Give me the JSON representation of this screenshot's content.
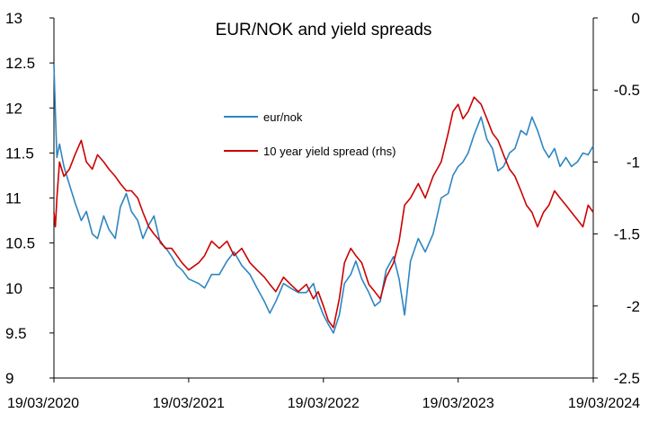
{
  "chart_data": {
    "type": "line",
    "title": "EUR/NOK and yield spreads",
    "x_tick_labels": [
      "19/03/2020",
      "19/03/2021",
      "19/03/2022",
      "19/03/2023",
      "19/03/2024"
    ],
    "x_range": [
      "2020-03-19",
      "2024-03-19"
    ],
    "y_left": {
      "min": 9,
      "max": 13,
      "step": 0.5,
      "tick_labels": [
        "13",
        "12.5",
        "12",
        "11.5",
        "11",
        "10.5",
        "10",
        "9.5",
        "9"
      ]
    },
    "y_right": {
      "min": -2.5,
      "max": 0,
      "step": 0.5,
      "tick_labels": [
        "0",
        "-0.5",
        "-1",
        "-1.5",
        "-2",
        "-2.5"
      ]
    },
    "grid": false,
    "legend_position": "upper-middle",
    "series": [
      {
        "name": "eur/nok",
        "axis": "left",
        "color": "#2E86C1",
        "points": [
          [
            "2020-03-19",
            12.48
          ],
          [
            "2020-03-23",
            11.95
          ],
          [
            "2020-03-27",
            11.45
          ],
          [
            "2020-04-03",
            11.6
          ],
          [
            "2020-04-15",
            11.35
          ],
          [
            "2020-04-30",
            11.15
          ],
          [
            "2020-05-15",
            10.95
          ],
          [
            "2020-06-01",
            10.75
          ],
          [
            "2020-06-15",
            10.85
          ],
          [
            "2020-07-01",
            10.6
          ],
          [
            "2020-07-15",
            10.55
          ],
          [
            "2020-08-01",
            10.8
          ],
          [
            "2020-08-15",
            10.65
          ],
          [
            "2020-09-01",
            10.55
          ],
          [
            "2020-09-15",
            10.9
          ],
          [
            "2020-10-01",
            11.05
          ],
          [
            "2020-10-15",
            10.85
          ],
          [
            "2020-11-01",
            10.75
          ],
          [
            "2020-11-15",
            10.55
          ],
          [
            "2020-12-01",
            10.7
          ],
          [
            "2020-12-15",
            10.8
          ],
          [
            "2021-01-01",
            10.5
          ],
          [
            "2021-01-15",
            10.45
          ],
          [
            "2021-02-01",
            10.35
          ],
          [
            "2021-02-15",
            10.25
          ],
          [
            "2021-03-01",
            10.2
          ],
          [
            "2021-03-19",
            10.1
          ],
          [
            "2021-04-15",
            10.05
          ],
          [
            "2021-05-01",
            10.0
          ],
          [
            "2021-05-20",
            10.15
          ],
          [
            "2021-06-10",
            10.15
          ],
          [
            "2021-07-01",
            10.3
          ],
          [
            "2021-07-20",
            10.4
          ],
          [
            "2021-08-10",
            10.25
          ],
          [
            "2021-09-01",
            10.15
          ],
          [
            "2021-09-20",
            10.0
          ],
          [
            "2021-10-10",
            9.85
          ],
          [
            "2021-10-25",
            9.72
          ],
          [
            "2021-11-10",
            9.85
          ],
          [
            "2021-12-01",
            10.05
          ],
          [
            "2021-12-20",
            10.0
          ],
          [
            "2022-01-10",
            9.95
          ],
          [
            "2022-02-01",
            9.95
          ],
          [
            "2022-02-20",
            10.05
          ],
          [
            "2022-03-05",
            9.85
          ],
          [
            "2022-03-19",
            9.7
          ],
          [
            "2022-04-01",
            9.6
          ],
          [
            "2022-04-15",
            9.5
          ],
          [
            "2022-05-01",
            9.7
          ],
          [
            "2022-05-15",
            10.05
          ],
          [
            "2022-06-01",
            10.15
          ],
          [
            "2022-06-15",
            10.3
          ],
          [
            "2022-07-01",
            10.1
          ],
          [
            "2022-07-20",
            9.95
          ],
          [
            "2022-08-05",
            9.8
          ],
          [
            "2022-08-20",
            9.85
          ],
          [
            "2022-09-05",
            10.2
          ],
          [
            "2022-09-25",
            10.35
          ],
          [
            "2022-10-10",
            10.1
          ],
          [
            "2022-10-25",
            9.7
          ],
          [
            "2022-11-10",
            10.3
          ],
          [
            "2022-12-01",
            10.55
          ],
          [
            "2022-12-20",
            10.4
          ],
          [
            "2023-01-10",
            10.6
          ],
          [
            "2023-02-01",
            11.0
          ],
          [
            "2023-02-20",
            11.05
          ],
          [
            "2023-03-05",
            11.25
          ],
          [
            "2023-03-19",
            11.35
          ],
          [
            "2023-04-01",
            11.4
          ],
          [
            "2023-04-15",
            11.5
          ],
          [
            "2023-05-01",
            11.7
          ],
          [
            "2023-05-20",
            11.9
          ],
          [
            "2023-06-05",
            11.65
          ],
          [
            "2023-06-20",
            11.55
          ],
          [
            "2023-07-05",
            11.3
          ],
          [
            "2023-07-20",
            11.35
          ],
          [
            "2023-08-05",
            11.5
          ],
          [
            "2023-08-20",
            11.55
          ],
          [
            "2023-09-05",
            11.75
          ],
          [
            "2023-09-20",
            11.7
          ],
          [
            "2023-10-05",
            11.9
          ],
          [
            "2023-10-20",
            11.75
          ],
          [
            "2023-11-05",
            11.55
          ],
          [
            "2023-11-20",
            11.45
          ],
          [
            "2023-12-05",
            11.55
          ],
          [
            "2023-12-20",
            11.35
          ],
          [
            "2024-01-05",
            11.45
          ],
          [
            "2024-01-20",
            11.35
          ],
          [
            "2024-02-05",
            11.4
          ],
          [
            "2024-02-20",
            11.5
          ],
          [
            "2024-03-05",
            11.48
          ],
          [
            "2024-03-19",
            11.58
          ]
        ]
      },
      {
        "name": "10 year yield spread (rhs)",
        "axis": "right",
        "color": "#CC0000",
        "points": [
          [
            "2020-03-19",
            -1.35
          ],
          [
            "2020-03-23",
            -1.45
          ],
          [
            "2020-03-27",
            -1.25
          ],
          [
            "2020-04-03",
            -1.0
          ],
          [
            "2020-04-15",
            -1.1
          ],
          [
            "2020-04-30",
            -1.05
          ],
          [
            "2020-05-15",
            -0.95
          ],
          [
            "2020-06-01",
            -0.85
          ],
          [
            "2020-06-15",
            -1.0
          ],
          [
            "2020-07-01",
            -1.05
          ],
          [
            "2020-07-15",
            -0.95
          ],
          [
            "2020-08-01",
            -1.0
          ],
          [
            "2020-08-15",
            -1.05
          ],
          [
            "2020-09-01",
            -1.1
          ],
          [
            "2020-09-15",
            -1.15
          ],
          [
            "2020-10-01",
            -1.2
          ],
          [
            "2020-10-15",
            -1.2
          ],
          [
            "2020-11-01",
            -1.25
          ],
          [
            "2020-11-15",
            -1.35
          ],
          [
            "2020-12-01",
            -1.45
          ],
          [
            "2020-12-15",
            -1.5
          ],
          [
            "2021-01-01",
            -1.55
          ],
          [
            "2021-01-15",
            -1.6
          ],
          [
            "2021-02-01",
            -1.6
          ],
          [
            "2021-02-15",
            -1.65
          ],
          [
            "2021-03-01",
            -1.7
          ],
          [
            "2021-03-19",
            -1.75
          ],
          [
            "2021-04-15",
            -1.7
          ],
          [
            "2021-05-01",
            -1.65
          ],
          [
            "2021-05-20",
            -1.55
          ],
          [
            "2021-06-10",
            -1.6
          ],
          [
            "2021-07-01",
            -1.55
          ],
          [
            "2021-07-20",
            -1.65
          ],
          [
            "2021-08-10",
            -1.6
          ],
          [
            "2021-09-01",
            -1.7
          ],
          [
            "2021-09-20",
            -1.75
          ],
          [
            "2021-10-10",
            -1.8
          ],
          [
            "2021-10-25",
            -1.85
          ],
          [
            "2021-11-10",
            -1.9
          ],
          [
            "2021-12-01",
            -1.8
          ],
          [
            "2021-12-20",
            -1.85
          ],
          [
            "2022-01-10",
            -1.9
          ],
          [
            "2022-02-01",
            -1.85
          ],
          [
            "2022-02-20",
            -1.95
          ],
          [
            "2022-03-05",
            -1.9
          ],
          [
            "2022-03-19",
            -2.0
          ],
          [
            "2022-04-01",
            -2.1
          ],
          [
            "2022-04-15",
            -2.15
          ],
          [
            "2022-05-01",
            -1.95
          ],
          [
            "2022-05-15",
            -1.7
          ],
          [
            "2022-06-01",
            -1.6
          ],
          [
            "2022-06-15",
            -1.65
          ],
          [
            "2022-07-01",
            -1.7
          ],
          [
            "2022-07-20",
            -1.85
          ],
          [
            "2022-08-05",
            -1.9
          ],
          [
            "2022-08-20",
            -1.95
          ],
          [
            "2022-09-05",
            -1.8
          ],
          [
            "2022-09-25",
            -1.7
          ],
          [
            "2022-10-10",
            -1.55
          ],
          [
            "2022-10-25",
            -1.3
          ],
          [
            "2022-11-10",
            -1.25
          ],
          [
            "2022-12-01",
            -1.15
          ],
          [
            "2022-12-20",
            -1.25
          ],
          [
            "2023-01-10",
            -1.1
          ],
          [
            "2023-02-01",
            -1.0
          ],
          [
            "2023-02-20",
            -0.8
          ],
          [
            "2023-03-05",
            -0.65
          ],
          [
            "2023-03-19",
            -0.6
          ],
          [
            "2023-04-01",
            -0.7
          ],
          [
            "2023-04-15",
            -0.65
          ],
          [
            "2023-05-01",
            -0.55
          ],
          [
            "2023-05-20",
            -0.6
          ],
          [
            "2023-06-05",
            -0.7
          ],
          [
            "2023-06-20",
            -0.8
          ],
          [
            "2023-07-05",
            -0.85
          ],
          [
            "2023-07-20",
            -0.95
          ],
          [
            "2023-08-05",
            -1.05
          ],
          [
            "2023-08-20",
            -1.1
          ],
          [
            "2023-09-05",
            -1.2
          ],
          [
            "2023-09-20",
            -1.3
          ],
          [
            "2023-10-05",
            -1.35
          ],
          [
            "2023-10-20",
            -1.45
          ],
          [
            "2023-11-05",
            -1.35
          ],
          [
            "2023-11-20",
            -1.3
          ],
          [
            "2023-12-05",
            -1.2
          ],
          [
            "2023-12-20",
            -1.25
          ],
          [
            "2024-01-05",
            -1.3
          ],
          [
            "2024-01-20",
            -1.35
          ],
          [
            "2024-02-05",
            -1.4
          ],
          [
            "2024-02-20",
            -1.45
          ],
          [
            "2024-03-05",
            -1.3
          ],
          [
            "2024-03-19",
            -1.35
          ]
        ]
      }
    ]
  }
}
